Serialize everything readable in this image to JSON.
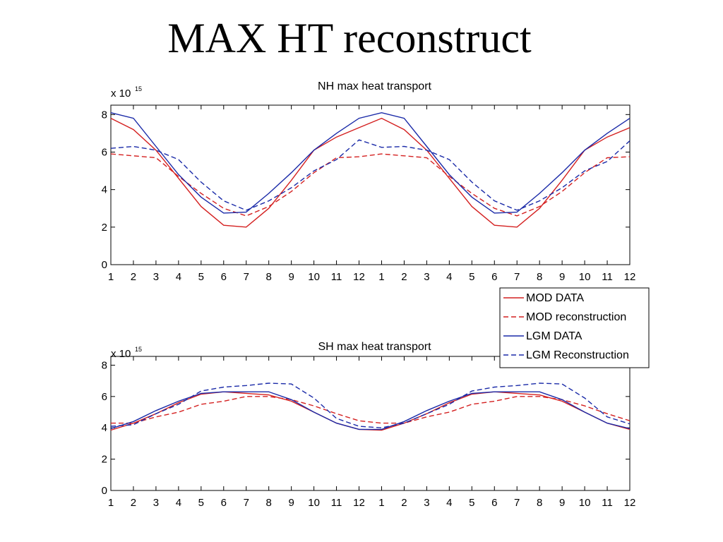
{
  "slide": {
    "title": "MAX HT reconstruct"
  },
  "colors": {
    "mod": "#d42020",
    "lgm": "#1a2aa8"
  },
  "legend": {
    "entries": [
      {
        "label": "MOD DATA",
        "color": "#d42020",
        "dash": false
      },
      {
        "label": "MOD reconstruction",
        "color": "#d42020",
        "dash": true
      },
      {
        "label": "LGM DATA",
        "color": "#1a2aa8",
        "dash": false
      },
      {
        "label": "LGM Reconstruction",
        "color": "#1a2aa8",
        "dash": true
      }
    ]
  },
  "chart_data": [
    {
      "type": "line",
      "title": "NH max heat transport",
      "xlabel": "",
      "ylabel": "",
      "exponent_label": "x 10",
      "exponent": "15",
      "x_tick_labels": [
        "1",
        "2",
        "3",
        "4",
        "5",
        "6",
        "7",
        "8",
        "9",
        "10",
        "11",
        "12",
        "1",
        "2",
        "3",
        "4",
        "5",
        "6",
        "7",
        "8",
        "9",
        "10",
        "11",
        "12"
      ],
      "ylim": [
        0,
        8.2
      ],
      "yticks": [
        0,
        2,
        4,
        6,
        8
      ],
      "grid": false,
      "series": [
        {
          "name": "MOD DATA",
          "color": "#d42020",
          "dash": false,
          "values": [
            7.8,
            7.2,
            6.1,
            4.6,
            3.1,
            2.1,
            2.0,
            3.0,
            4.5,
            6.1,
            6.8,
            7.3,
            7.8,
            7.2,
            6.1,
            4.6,
            3.1,
            2.1,
            2.0,
            3.0,
            4.5,
            6.1,
            6.8,
            7.3
          ]
        },
        {
          "name": "MOD reconstruction",
          "color": "#d42020",
          "dash": true,
          "values": [
            5.9,
            5.8,
            5.7,
            4.7,
            3.8,
            3.0,
            2.6,
            3.1,
            3.9,
            4.9,
            5.7,
            5.75,
            5.9,
            5.8,
            5.7,
            4.7,
            3.8,
            3.0,
            2.6,
            3.1,
            3.9,
            4.9,
            5.7,
            5.75
          ]
        },
        {
          "name": "LGM DATA",
          "color": "#1a2aa8",
          "dash": false,
          "values": [
            8.1,
            7.8,
            6.3,
            4.8,
            3.6,
            2.75,
            2.8,
            3.8,
            4.9,
            6.1,
            7.0,
            7.8,
            8.1,
            7.8,
            6.3,
            4.8,
            3.6,
            2.75,
            2.8,
            3.8,
            4.9,
            6.1,
            7.0,
            7.8
          ]
        },
        {
          "name": "LGM Reconstruction",
          "color": "#1a2aa8",
          "dash": true,
          "values": [
            6.2,
            6.3,
            6.1,
            5.6,
            4.4,
            3.4,
            2.9,
            3.4,
            4.1,
            5.0,
            5.6,
            6.65,
            6.25,
            6.3,
            6.1,
            5.6,
            4.4,
            3.4,
            2.9,
            3.4,
            4.1,
            5.0,
            5.5,
            6.6
          ]
        }
      ]
    },
    {
      "type": "line",
      "title": "SH max heat transport",
      "xlabel": "",
      "ylabel": "",
      "exponent_label": "x 10",
      "exponent": "15",
      "x_tick_labels": [
        "1",
        "2",
        "3",
        "4",
        "5",
        "6",
        "7",
        "8",
        "9",
        "10",
        "11",
        "12",
        "1",
        "2",
        "3",
        "4",
        "5",
        "6",
        "7",
        "8",
        "9",
        "10",
        "11",
        "12"
      ],
      "ylim": [
        0,
        8.2
      ],
      "yticks": [
        0,
        2,
        4,
        6,
        8
      ],
      "grid": false,
      "series": [
        {
          "name": "MOD DATA",
          "color": "#d42020",
          "dash": false,
          "values": [
            3.85,
            4.3,
            4.9,
            5.6,
            6.15,
            6.3,
            6.2,
            6.1,
            5.7,
            5.0,
            4.3,
            3.9,
            3.85,
            4.3,
            4.9,
            5.6,
            6.15,
            6.3,
            6.2,
            6.1,
            5.7,
            5.0,
            4.3,
            3.9
          ]
        },
        {
          "name": "MOD reconstruction",
          "color": "#d42020",
          "dash": true,
          "values": [
            4.3,
            4.3,
            4.7,
            5.0,
            5.5,
            5.7,
            6.0,
            6.0,
            5.8,
            5.4,
            4.9,
            4.45,
            4.3,
            4.3,
            4.7,
            5.0,
            5.5,
            5.7,
            6.0,
            6.0,
            5.8,
            5.4,
            4.9,
            4.45
          ]
        },
        {
          "name": "LGM DATA",
          "color": "#1a2aa8",
          "dash": false,
          "values": [
            3.95,
            4.4,
            5.1,
            5.7,
            6.2,
            6.3,
            6.3,
            6.3,
            5.8,
            5.0,
            4.3,
            3.9,
            3.9,
            4.4,
            5.1,
            5.7,
            6.2,
            6.3,
            6.3,
            6.3,
            5.8,
            5.0,
            4.3,
            3.95
          ]
        },
        {
          "name": "LGM Reconstruction",
          "color": "#1a2aa8",
          "dash": true,
          "values": [
            4.1,
            4.2,
            4.9,
            5.5,
            6.35,
            6.6,
            6.7,
            6.85,
            6.8,
            5.9,
            4.6,
            4.1,
            4.0,
            4.3,
            4.9,
            5.5,
            6.35,
            6.6,
            6.7,
            6.85,
            6.8,
            5.9,
            4.7,
            4.25
          ]
        }
      ]
    }
  ]
}
